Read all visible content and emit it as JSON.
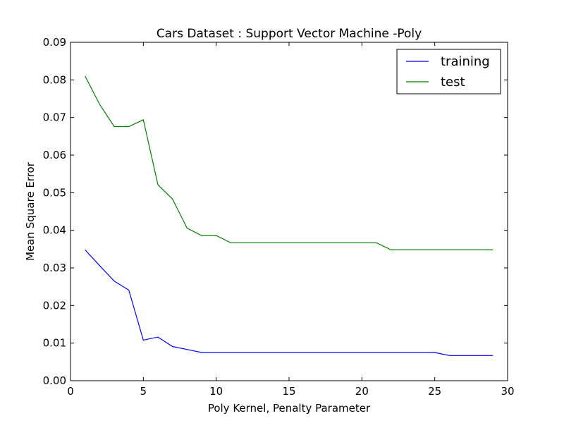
{
  "chart_data": {
    "type": "line",
    "title": "Cars Dataset : Support Vector Machine -Poly",
    "xlabel": "Poly Kernel, Penalty Parameter",
    "ylabel": "Mean Square Error",
    "xlim": [
      0,
      30
    ],
    "ylim": [
      0,
      0.09
    ],
    "xticks": [
      0,
      5,
      10,
      15,
      20,
      25,
      30
    ],
    "xtick_labels": [
      "0",
      "5",
      "10",
      "15",
      "20",
      "25",
      "30"
    ],
    "yticks": [
      0,
      0.01,
      0.02,
      0.03,
      0.04,
      0.05,
      0.06,
      0.07,
      0.08,
      0.09
    ],
    "ytick_labels": [
      "0.00",
      "0.01",
      "0.02",
      "0.03",
      "0.04",
      "0.05",
      "0.06",
      "0.07",
      "0.08",
      "0.09"
    ],
    "grid": false,
    "legend_position": "top-right",
    "x": [
      1,
      2,
      3,
      4,
      5,
      6,
      7,
      8,
      9,
      10,
      11,
      12,
      13,
      14,
      15,
      16,
      17,
      18,
      19,
      20,
      21,
      22,
      23,
      24,
      25,
      26,
      27,
      28,
      29
    ],
    "series": [
      {
        "name": "training",
        "color": "#0000ff",
        "values": [
          0.0348,
          0.0306,
          0.0265,
          0.0241,
          0.0108,
          0.0116,
          0.0091,
          0.0083,
          0.0075,
          0.0075,
          0.0075,
          0.0075,
          0.0075,
          0.0075,
          0.0075,
          0.0075,
          0.0075,
          0.0075,
          0.0075,
          0.0075,
          0.0075,
          0.0075,
          0.0075,
          0.0075,
          0.0075,
          0.0067,
          0.0067,
          0.0067,
          0.0067
        ]
      },
      {
        "name": "test",
        "color": "#008000",
        "values": [
          0.081,
          0.0735,
          0.0676,
          0.0676,
          0.0694,
          0.0521,
          0.0483,
          0.0406,
          0.0386,
          0.0386,
          0.0367,
          0.0367,
          0.0367,
          0.0367,
          0.0367,
          0.0367,
          0.0367,
          0.0367,
          0.0367,
          0.0367,
          0.0367,
          0.0348,
          0.0348,
          0.0348,
          0.0348,
          0.0348,
          0.0348,
          0.0348,
          0.0348
        ]
      }
    ]
  }
}
